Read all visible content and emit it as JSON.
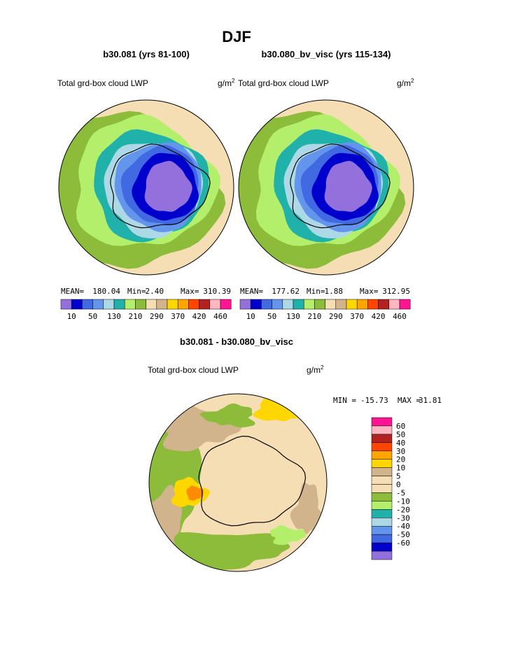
{
  "title": "DJF",
  "panels": [
    {
      "title": "b30.081 (yrs 81-100)",
      "left_label": "Total grd-box cloud LWP",
      "units": "g/m",
      "units_power": "2",
      "stats": {
        "mean_label": "MEAN=",
        "mean": "180.04",
        "min_label": "Min=",
        "min": "2.40",
        "max_label": "Max=",
        "max": "310.39"
      },
      "colorbar_labels": [
        "10",
        "50",
        "130",
        "210",
        "290",
        "370",
        "420",
        "460"
      ]
    },
    {
      "title": "b30.080_bv_visc (yrs 115-134)",
      "left_label": "Total grd-box cloud LWP",
      "units": "g/m",
      "units_power": "2",
      "stats": {
        "mean_label": "MEAN=",
        "mean": "177.62",
        "min_label": "Min=",
        "min": "1.88",
        "max_label": "Max=",
        "max": "312.95"
      },
      "colorbar_labels": [
        "10",
        "50",
        "130",
        "210",
        "290",
        "370",
        "420",
        "460"
      ]
    }
  ],
  "colorbar_colors": [
    "#9370db",
    "#0000cd",
    "#4169e1",
    "#6495ed",
    "#add8e6",
    "#20b2aa",
    "#b4ef6b",
    "#8cbc3a",
    "#f5deb3",
    "#d2b48c",
    "#ffd700",
    "#ffa500",
    "#ff4500",
    "#b22222",
    "#ffb6c1",
    "#ff1493"
  ],
  "difference": {
    "title": "b30.081 - b30.080_bv_visc",
    "left_label": "Total grd-box cloud LWP",
    "units": "g/m",
    "units_power": "2",
    "stats": {
      "min_label": "MIN =",
      "min": "-15.73",
      "max_label": "MAX =",
      "max": "31.81"
    },
    "colorbar_labels": [
      "60",
      "50",
      "40",
      "30",
      "20",
      "10",
      "5",
      "0",
      "-5",
      "-10",
      "-20",
      "-30",
      "-40",
      "-50",
      "-60"
    ],
    "colorbar_colors": [
      "#ff1493",
      "#ffb6c1",
      "#b22222",
      "#ff4500",
      "#ffa500",
      "#ffd700",
      "#d2b48c",
      "#f5deb3",
      "#f5deb3",
      "#8cbc3a",
      "#b4ef6b",
      "#20b2aa",
      "#add8e6",
      "#6495ed",
      "#4169e1",
      "#0000cd",
      "#9370db"
    ]
  }
}
